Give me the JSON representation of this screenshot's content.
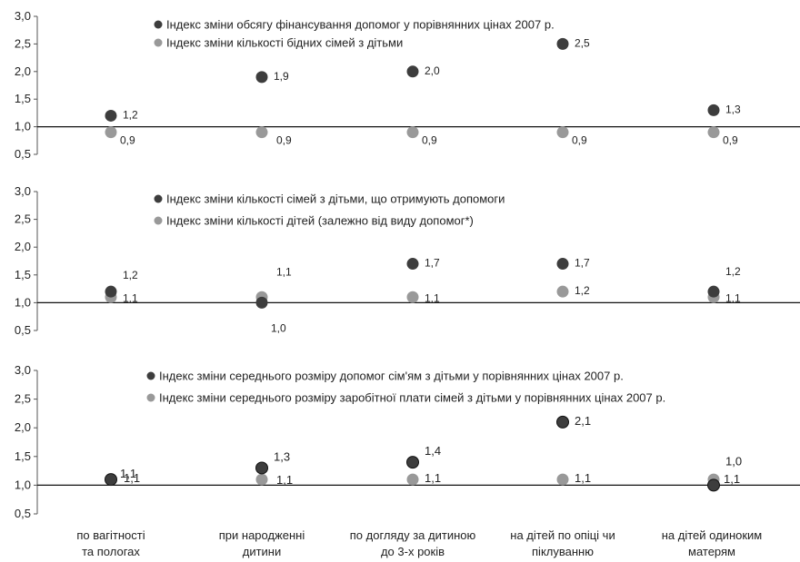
{
  "chart_data": [
    {
      "type": "scatter",
      "categories": [
        "по вагітності та пологах",
        "при народженні дитини",
        "по догляду за дитиною до 3-х років",
        "на дітей по опіці чи піклуванню",
        "на дітей одиноким матерям"
      ],
      "yticks": [
        "3,0",
        "2,5",
        "2,0",
        "1,5",
        "1,0",
        "0,5"
      ],
      "ylim": [
        0.5,
        3.0
      ],
      "reference_line": 1.0,
      "series": [
        {
          "name": "Індекс зміни обсягу фінансування допомог у порівнянних цінах 2007 р.",
          "color": "#3d3d3d",
          "values": [
            1.2,
            1.9,
            2.0,
            2.5,
            1.3
          ],
          "labels": [
            "1,2",
            "1,9",
            "2,0",
            "2,5",
            "1,3"
          ]
        },
        {
          "name": "Індекс зміни кількості бідних сімей з дітьми",
          "color": "#999999",
          "values": [
            0.9,
            0.9,
            0.9,
            0.9,
            0.9
          ],
          "labels": [
            "0,9",
            "0,9",
            "0,9",
            "0,9",
            "0,9"
          ]
        }
      ]
    },
    {
      "type": "scatter",
      "categories": [
        "по вагітності та пологах",
        "при народженні дитини",
        "по догляду за дитиною до 3-х років",
        "на дітей по опіці чи піклуванню",
        "на дітей одиноким матерям"
      ],
      "yticks": [
        "3,0",
        "2,5",
        "2,0",
        "1,5",
        "1,0",
        "0,5"
      ],
      "ylim": [
        0.5,
        3.0
      ],
      "reference_line": 1.0,
      "series": [
        {
          "name": "Індекс зміни кількості сімей з дітьми, що отримують допомоги",
          "color": "#3d3d3d",
          "values": [
            1.2,
            1.0,
            1.7,
            1.7,
            1.2
          ],
          "labels": [
            "1,2",
            "1,0",
            "1,7",
            "1,7",
            "1,2"
          ]
        },
        {
          "name": "Індекс зміни кількості дітей (залежно від виду допомог*)",
          "color": "#999999",
          "values": [
            1.1,
            1.1,
            1.1,
            1.2,
            1.1
          ],
          "labels": [
            "1,1",
            "1,1",
            "1,1",
            "1,2",
            "1,1"
          ]
        }
      ]
    },
    {
      "type": "scatter",
      "categories": [
        "по вагітності та пологах",
        "при народженні дитини",
        "по догляду за дитиною до 3-х років",
        "на дітей по опіці чи піклуванню",
        "на дітей одиноким матерям"
      ],
      "yticks": [
        "3,0",
        "2,5",
        "2,0",
        "1,5",
        "1,0",
        "0,5"
      ],
      "ylim": [
        0.5,
        3.0
      ],
      "reference_line": 1.0,
      "series": [
        {
          "name": "Індекс зміни середнього розміру допомог сім'ям з дітьми у порівнянних цінах 2007 р.",
          "color": "#3d3d3d",
          "values": [
            1.1,
            1.3,
            1.4,
            2.1,
            1.0
          ],
          "labels": [
            "1,1",
            "1,3",
            "1,4",
            "2,1",
            "1,0"
          ]
        },
        {
          "name": "Індекс зміни середнього розміру заробітної плати сімей з дітьми у порівнянних цінах 2007 р.",
          "color": "#999999",
          "values": [
            1.1,
            1.1,
            1.1,
            1.1,
            1.1
          ],
          "labels": [
            "1,1",
            "1,1",
            "1,1",
            "1,1",
            "1,1"
          ]
        }
      ]
    }
  ],
  "category_lines": [
    [
      "по вагітності",
      "та пологах"
    ],
    [
      "при народженні",
      "дитини"
    ],
    [
      "по догляду за дитиною",
      "до 3-х років"
    ],
    [
      "на дітей по опіці чи",
      "піклуванню"
    ],
    [
      "на дітей одиноким",
      "матерям"
    ]
  ]
}
